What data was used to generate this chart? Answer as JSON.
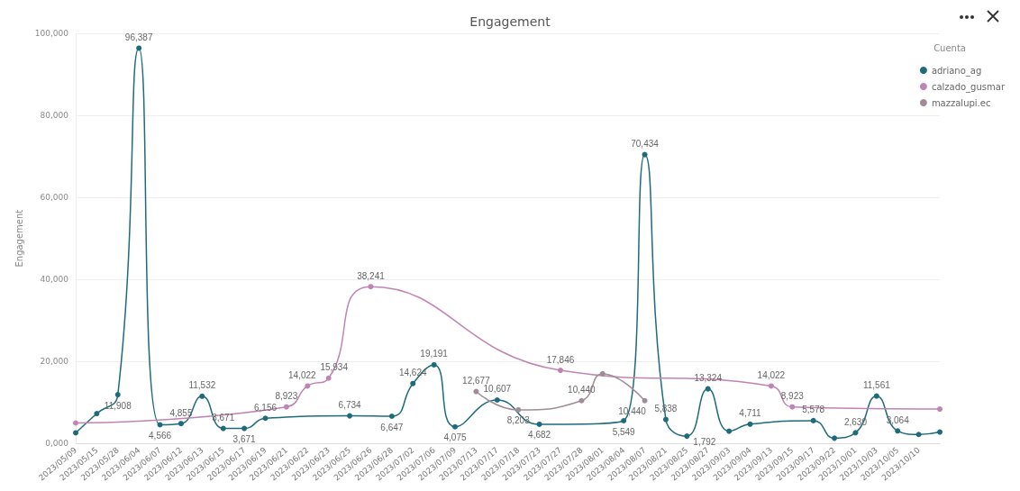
{
  "chart_data": {
    "type": "line",
    "title": "Engagement",
    "ylabel": "Engagement",
    "legend_title": "Cuenta",
    "legend": "top right",
    "grid": "y",
    "marker": "circle",
    "line_style": "solid",
    "categories": [
      "2023/05/09",
      "2023/05/15",
      "2023/05/28",
      "2023/06/04",
      "2023/06/07",
      "2023/06/12",
      "2023/06/13",
      "2023/06/15",
      "2023/06/17",
      "2023/06/19",
      "2023/06/21",
      "2023/06/22",
      "2023/06/23",
      "2023/06/25",
      "2023/06/26",
      "2023/06/28",
      "2023/07/02",
      "2023/07/06",
      "2023/07/09",
      "2023/07/13",
      "2023/07/17",
      "2023/07/18",
      "2023/07/23",
      "2023/07/27",
      "2023/07/28",
      "2023/08/01",
      "2023/08/04",
      "2023/08/07",
      "2023/08/21",
      "2023/08/25",
      "2023/08/27",
      "2023/09/03",
      "2023/09/04",
      "2023/09/13",
      "2023/09/15",
      "2023/09/17",
      "2023/09/22",
      "2023/10/01",
      "2023/10/03",
      "2023/10/05",
      "2023/10/10",
      null
    ],
    "ylim": [
      0,
      100000
    ],
    "yticks": [
      {
        "value": 0,
        "label": "0,000"
      },
      {
        "value": 20000,
        "label": "20,000"
      },
      {
        "value": 40000,
        "label": "40,000"
      },
      {
        "value": 60000,
        "label": "60,000"
      },
      {
        "value": 80000,
        "label": "80,000"
      },
      {
        "value": 100000,
        "label": "100,000"
      }
    ],
    "series": [
      {
        "name": "adriano_ag",
        "color": "#1e6b7b",
        "values": [
          2600,
          7300,
          11908,
          96387,
          4566,
          4855,
          11532,
          3671,
          3671,
          6156,
          null,
          null,
          null,
          6734,
          null,
          6647,
          14624,
          19191,
          4075,
          null,
          10607,
          null,
          4682,
          null,
          null,
          null,
          5549,
          70434,
          5838,
          1792,
          13324,
          3000,
          4711,
          null,
          null,
          5578,
          1300,
          2630,
          11561,
          3064,
          2200,
          2800
        ],
        "value_labels": [
          null,
          null,
          "11,908",
          "96,387",
          "4,566",
          "4,855",
          "11,532",
          "3,671",
          "3,671",
          "6,156",
          null,
          null,
          null,
          "6,734",
          null,
          "6,647",
          "14,624",
          "19,191",
          "4,075",
          null,
          "10,607",
          null,
          "4,682",
          null,
          null,
          null,
          "5,549",
          "70,434",
          "5,838",
          "1,792",
          "13,324",
          null,
          "4,711",
          null,
          null,
          "5,578",
          null,
          "2,630",
          "11,561",
          "3,064",
          null,
          null
        ]
      },
      {
        "name": "calzado_gusmar",
        "color": "#c084b4",
        "values": [
          5000,
          null,
          null,
          null,
          null,
          null,
          null,
          null,
          null,
          null,
          8923,
          14022,
          15934,
          null,
          38241,
          null,
          null,
          null,
          null,
          null,
          null,
          null,
          null,
          17846,
          null,
          null,
          null,
          null,
          null,
          null,
          null,
          null,
          null,
          14022,
          8923,
          null,
          null,
          null,
          null,
          null,
          null,
          8400
        ],
        "value_labels": [
          null,
          null,
          null,
          null,
          null,
          null,
          null,
          null,
          null,
          null,
          "8,923",
          "14,022",
          "15,934",
          null,
          "38,241",
          null,
          null,
          null,
          null,
          null,
          null,
          null,
          null,
          "17,846",
          null,
          null,
          null,
          null,
          null,
          null,
          null,
          null,
          null,
          "14,022",
          "8,923",
          null,
          null,
          null,
          null,
          null,
          null,
          null
        ]
      },
      {
        "name": "mazzalupi.ec",
        "color": "#a08c98",
        "values": [
          null,
          null,
          null,
          null,
          null,
          null,
          null,
          null,
          null,
          null,
          null,
          null,
          null,
          null,
          null,
          null,
          null,
          null,
          null,
          12677,
          null,
          8203,
          null,
          null,
          10440,
          17000,
          null,
          10440,
          null,
          null,
          null,
          null,
          null,
          null,
          null,
          null,
          null,
          null,
          null,
          null,
          null,
          null
        ],
        "value_labels": [
          null,
          null,
          null,
          null,
          null,
          null,
          null,
          null,
          null,
          null,
          null,
          null,
          null,
          null,
          null,
          null,
          null,
          null,
          null,
          "12,677",
          null,
          "8,203",
          null,
          null,
          "10,440",
          null,
          null,
          "10,440",
          null,
          null,
          null,
          null,
          null,
          null,
          null,
          null,
          null,
          null,
          null,
          null,
          null,
          null
        ]
      }
    ]
  }
}
